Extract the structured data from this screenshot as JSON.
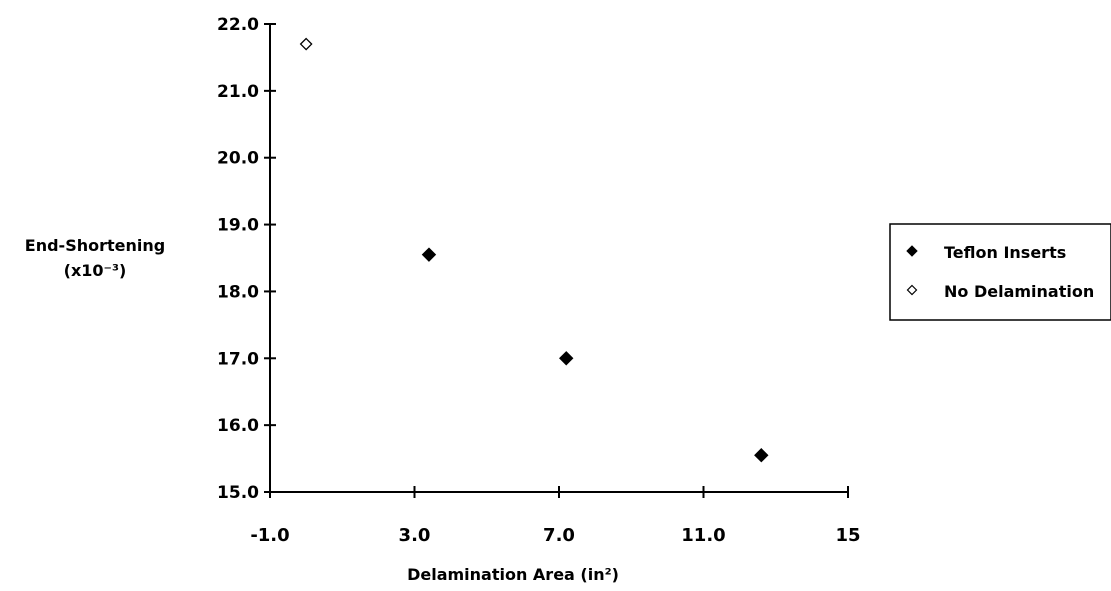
{
  "chart_data": {
    "type": "scatter",
    "title": "",
    "xlabel": "Delamination Area (in²)",
    "ylabel_lines": [
      "End-Shortening",
      "(x10⁻³)"
    ],
    "xlim": [
      -1.0,
      15
    ],
    "ylim": [
      15.0,
      22.0
    ],
    "x_ticks": [
      -1.0,
      3.0,
      7.0,
      11.0,
      15
    ],
    "x_tick_labels": [
      "-1.0",
      "3.0",
      "7.0",
      "11.0",
      "15"
    ],
    "y_ticks": [
      15.0,
      16.0,
      17.0,
      18.0,
      19.0,
      20.0,
      21.0,
      22.0
    ],
    "y_tick_labels": [
      "15.0",
      "16.0",
      "17.0",
      "18.0",
      "19.0",
      "20.0",
      "21.0",
      "22.0"
    ],
    "grid": false,
    "legend_position": "right",
    "series": [
      {
        "name": "Teflon Inserts",
        "marker": "filled-diamond",
        "color": "#000000",
        "points": [
          {
            "x": 3.4,
            "y": 18.55
          },
          {
            "x": 7.2,
            "y": 17.0
          },
          {
            "x": 12.6,
            "y": 15.55
          }
        ]
      },
      {
        "name": "No Delamination",
        "marker": "open-diamond",
        "color": "#000000",
        "points": [
          {
            "x": 0.0,
            "y": 21.7
          }
        ]
      }
    ]
  }
}
